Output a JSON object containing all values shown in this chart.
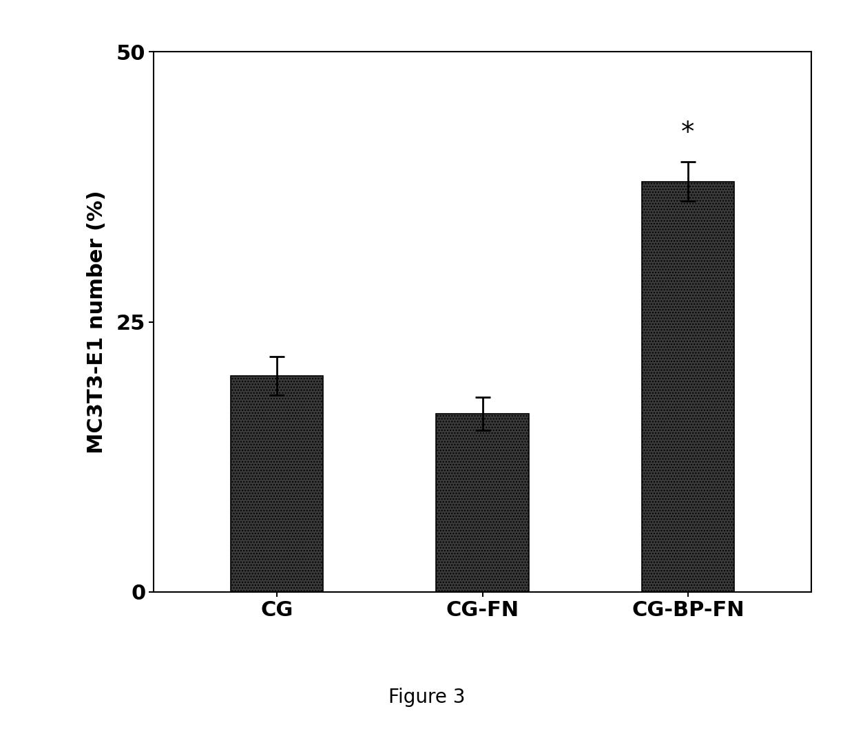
{
  "categories": [
    "CG",
    "CG-FN",
    "CG-BP-FN"
  ],
  "values": [
    20.0,
    16.5,
    38.0
  ],
  "errors": [
    1.8,
    1.5,
    1.8
  ],
  "bar_color": "#3a3a3a",
  "bar_width": 0.45,
  "ylim": [
    0,
    50
  ],
  "yticks": [
    0,
    25,
    50
  ],
  "ylabel": "MC3T3-E1 number (%)",
  "xlabel": "",
  "figure_label": "Figure 3",
  "significant_bar": 2,
  "asterisk_text": "*",
  "background_color": "#ffffff",
  "ylabel_fontsize": 22,
  "tick_fontsize": 22,
  "xlabel_fontsize": 22,
  "figure_label_fontsize": 20,
  "bar_edge_color": "#000000",
  "hatch": "...."
}
